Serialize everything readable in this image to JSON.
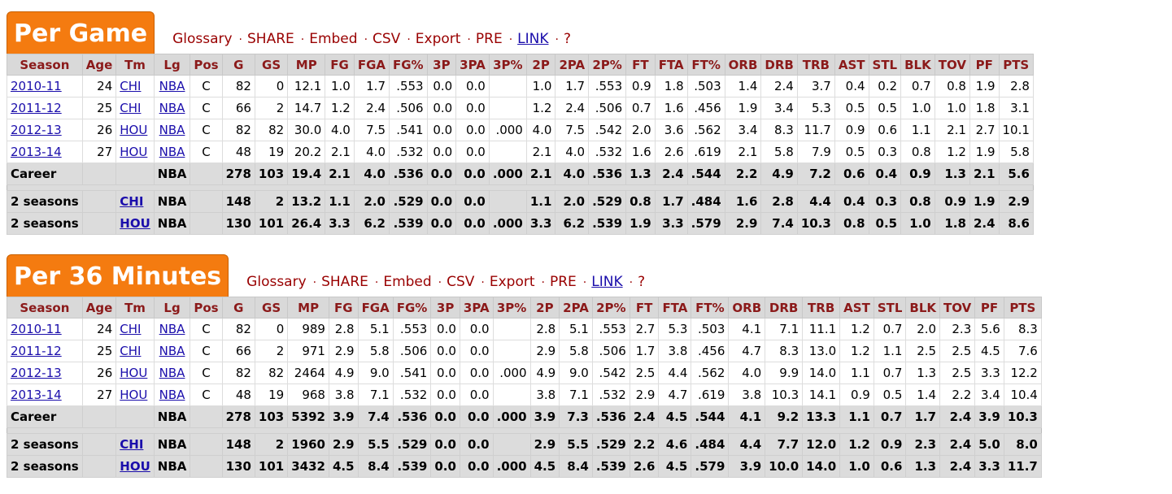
{
  "sections": [
    {
      "title": "Per Game",
      "separator": "·",
      "links": [
        "Glossary",
        "SHARE",
        "Embed",
        "CSV",
        "Export",
        "PRE",
        "LINK",
        "?"
      ],
      "table": {
        "headers": [
          "Season",
          "Age",
          "Tm",
          "Lg",
          "Pos",
          "G",
          "GS",
          "MP",
          "FG",
          "FGA",
          "FG%",
          "3P",
          "3PA",
          "3P%",
          "2P",
          "2PA",
          "2P%",
          "FT",
          "FTA",
          "FT%",
          "ORB",
          "DRB",
          "TRB",
          "AST",
          "STL",
          "BLK",
          "TOV",
          "PF",
          "PTS"
        ],
        "rows": [
          [
            "2010-11",
            "24",
            "CHI",
            "NBA",
            "C",
            "82",
            "0",
            "12.1",
            "1.0",
            "1.7",
            ".553",
            "0.0",
            "0.0",
            null,
            "1.0",
            "1.7",
            ".553",
            "0.9",
            "1.8",
            ".503",
            "1.4",
            "2.4",
            "3.7",
            "0.4",
            "0.2",
            "0.7",
            "0.8",
            "1.9",
            "2.8"
          ],
          [
            "2011-12",
            "25",
            "CHI",
            "NBA",
            "C",
            "66",
            "2",
            "14.7",
            "1.2",
            "2.4",
            ".506",
            "0.0",
            "0.0",
            null,
            "1.2",
            "2.4",
            ".506",
            "0.7",
            "1.6",
            ".456",
            "1.9",
            "3.4",
            "5.3",
            "0.5",
            "0.5",
            "1.0",
            "1.0",
            "1.8",
            "3.1"
          ],
          [
            "2012-13",
            "26",
            "HOU",
            "NBA",
            "C",
            "82",
            "82",
            "30.0",
            "4.0",
            "7.5",
            ".541",
            "0.0",
            "0.0",
            ".000",
            "4.0",
            "7.5",
            ".542",
            "2.0",
            "3.6",
            ".562",
            "3.4",
            "8.3",
            "11.7",
            "0.9",
            "0.6",
            "1.1",
            "2.1",
            "2.7",
            "10.1"
          ],
          [
            "2013-14",
            "27",
            "HOU",
            "NBA",
            "C",
            "48",
            "19",
            "20.2",
            "2.1",
            "4.0",
            ".532",
            "0.0",
            "0.0",
            null,
            "2.1",
            "4.0",
            ".532",
            "1.6",
            "2.6",
            ".619",
            "2.1",
            "5.8",
            "7.9",
            "0.5",
            "0.3",
            "0.8",
            "1.2",
            "1.9",
            "5.8"
          ]
        ],
        "career": [
          "Career",
          null,
          null,
          "NBA",
          null,
          "278",
          "103",
          "19.4",
          "2.1",
          "4.0",
          ".536",
          "0.0",
          "0.0",
          ".000",
          "2.1",
          "4.0",
          ".536",
          "1.3",
          "2.4",
          ".544",
          "2.2",
          "4.9",
          "7.2",
          "0.6",
          "0.4",
          "0.9",
          "1.3",
          "2.1",
          "5.6"
        ],
        "splits": [
          [
            "2 seasons",
            null,
            "CHI",
            "NBA",
            null,
            "148",
            "2",
            "13.2",
            "1.1",
            "2.0",
            ".529",
            "0.0",
            "0.0",
            null,
            "1.1",
            "2.0",
            ".529",
            "0.8",
            "1.7",
            ".484",
            "1.6",
            "2.8",
            "4.4",
            "0.4",
            "0.3",
            "0.8",
            "0.9",
            "1.9",
            "2.9"
          ],
          [
            "2 seasons",
            null,
            "HOU",
            "NBA",
            null,
            "130",
            "101",
            "26.4",
            "3.3",
            "6.2",
            ".539",
            "0.0",
            "0.0",
            ".000",
            "3.3",
            "6.2",
            ".539",
            "1.9",
            "3.3",
            ".579",
            "2.9",
            "7.4",
            "10.3",
            "0.8",
            "0.5",
            "1.0",
            "1.8",
            "2.4",
            "8.6"
          ]
        ]
      }
    },
    {
      "title": "Per 36 Minutes",
      "separator": "·",
      "links": [
        "Glossary",
        "SHARE",
        "Embed",
        "CSV",
        "Export",
        "PRE",
        "LINK",
        "?"
      ],
      "table": {
        "headers": [
          "Season",
          "Age",
          "Tm",
          "Lg",
          "Pos",
          "G",
          "GS",
          "MP",
          "FG",
          "FGA",
          "FG%",
          "3P",
          "3PA",
          "3P%",
          "2P",
          "2PA",
          "2P%",
          "FT",
          "FTA",
          "FT%",
          "ORB",
          "DRB",
          "TRB",
          "AST",
          "STL",
          "BLK",
          "TOV",
          "PF",
          "PTS"
        ],
        "rows": [
          [
            "2010-11",
            "24",
            "CHI",
            "NBA",
            "C",
            "82",
            "0",
            "989",
            "2.8",
            "5.1",
            ".553",
            "0.0",
            "0.0",
            null,
            "2.8",
            "5.1",
            ".553",
            "2.7",
            "5.3",
            ".503",
            "4.1",
            "7.1",
            "11.1",
            "1.2",
            "0.7",
            "2.0",
            "2.3",
            "5.6",
            "8.3"
          ],
          [
            "2011-12",
            "25",
            "CHI",
            "NBA",
            "C",
            "66",
            "2",
            "971",
            "2.9",
            "5.8",
            ".506",
            "0.0",
            "0.0",
            null,
            "2.9",
            "5.8",
            ".506",
            "1.7",
            "3.8",
            ".456",
            "4.7",
            "8.3",
            "13.0",
            "1.2",
            "1.1",
            "2.5",
            "2.5",
            "4.5",
            "7.6"
          ],
          [
            "2012-13",
            "26",
            "HOU",
            "NBA",
            "C",
            "82",
            "82",
            "2464",
            "4.9",
            "9.0",
            ".541",
            "0.0",
            "0.0",
            ".000",
            "4.9",
            "9.0",
            ".542",
            "2.5",
            "4.4",
            ".562",
            "4.0",
            "9.9",
            "14.0",
            "1.1",
            "0.7",
            "1.3",
            "2.5",
            "3.3",
            "12.2"
          ],
          [
            "2013-14",
            "27",
            "HOU",
            "NBA",
            "C",
            "48",
            "19",
            "968",
            "3.8",
            "7.1",
            ".532",
            "0.0",
            "0.0",
            null,
            "3.8",
            "7.1",
            ".532",
            "2.9",
            "4.7",
            ".619",
            "3.8",
            "10.3",
            "14.1",
            "0.9",
            "0.5",
            "1.4",
            "2.2",
            "3.4",
            "10.4"
          ]
        ],
        "career": [
          "Career",
          null,
          null,
          "NBA",
          null,
          "278",
          "103",
          "5392",
          "3.9",
          "7.4",
          ".536",
          "0.0",
          "0.0",
          ".000",
          "3.9",
          "7.3",
          ".536",
          "2.4",
          "4.5",
          ".544",
          "4.1",
          "9.2",
          "13.3",
          "1.1",
          "0.7",
          "1.7",
          "2.4",
          "3.9",
          "10.3"
        ],
        "splits": [
          [
            "2 seasons",
            null,
            "CHI",
            "NBA",
            null,
            "148",
            "2",
            "1960",
            "2.9",
            "5.5",
            ".529",
            "0.0",
            "0.0",
            null,
            "2.9",
            "5.5",
            ".529",
            "2.2",
            "4.6",
            ".484",
            "4.4",
            "7.7",
            "12.0",
            "1.2",
            "0.9",
            "2.3",
            "2.4",
            "5.0",
            "8.0"
          ],
          [
            "2 seasons",
            null,
            "HOU",
            "NBA",
            null,
            "130",
            "101",
            "3432",
            "4.5",
            "8.4",
            ".539",
            "0.0",
            "0.0",
            ".000",
            "4.5",
            "8.4",
            ".539",
            "2.6",
            "4.5",
            ".579",
            "3.9",
            "10.0",
            "14.0",
            "1.0",
            "0.6",
            "1.3",
            "2.4",
            "3.3",
            "11.7"
          ]
        ]
      }
    }
  ]
}
